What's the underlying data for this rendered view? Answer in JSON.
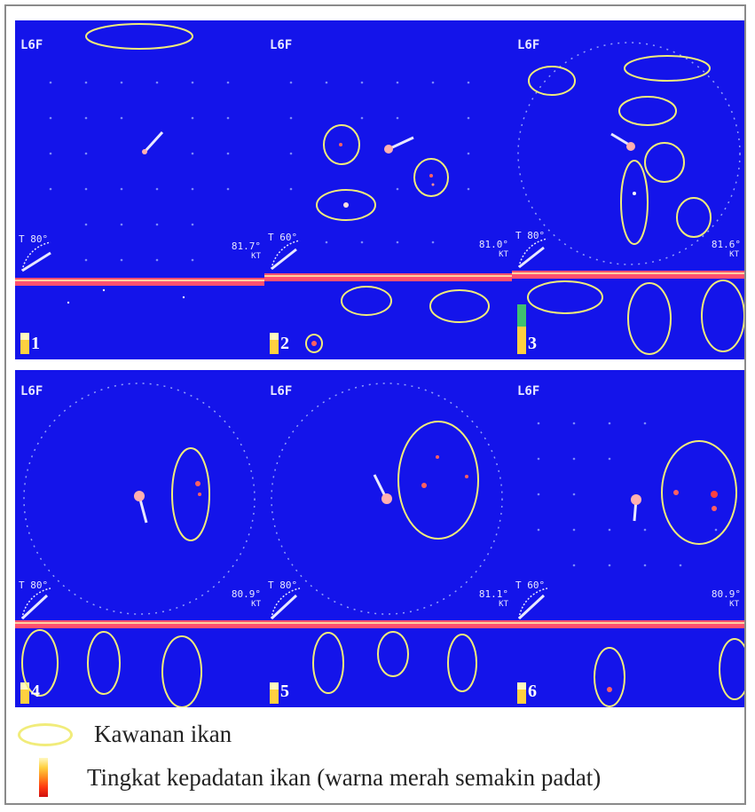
{
  "panels": [
    {
      "number": "1",
      "range": "L6F",
      "tilt": "T 80°",
      "reading": "81.7°",
      "units": "KT"
    },
    {
      "number": "2",
      "range": "L6F",
      "tilt": "T 60°",
      "reading": "81.0°",
      "units": "KT"
    },
    {
      "number": "3",
      "range": "L6F",
      "tilt": "T 80°",
      "reading": "81.6°",
      "units": "KT"
    },
    {
      "number": "4",
      "range": "L6F",
      "tilt": "T 80°",
      "reading": "80.9°",
      "units": "KT"
    },
    {
      "number": "5",
      "range": "L6F",
      "tilt": "T 80°",
      "reading": "81.1°",
      "units": "KT"
    },
    {
      "number": "6",
      "range": "L6F",
      "tilt": "T 60°",
      "reading": "80.9°",
      "units": "KT"
    }
  ],
  "legend": {
    "school_label": "Kawanan ikan",
    "density_label": "Tingkat kepadatan ikan (warna merah semakin padat)"
  },
  "colors": {
    "screen_bg": "#1414ea",
    "highlight": "#f1ec7a",
    "bar": "#ff5070"
  }
}
